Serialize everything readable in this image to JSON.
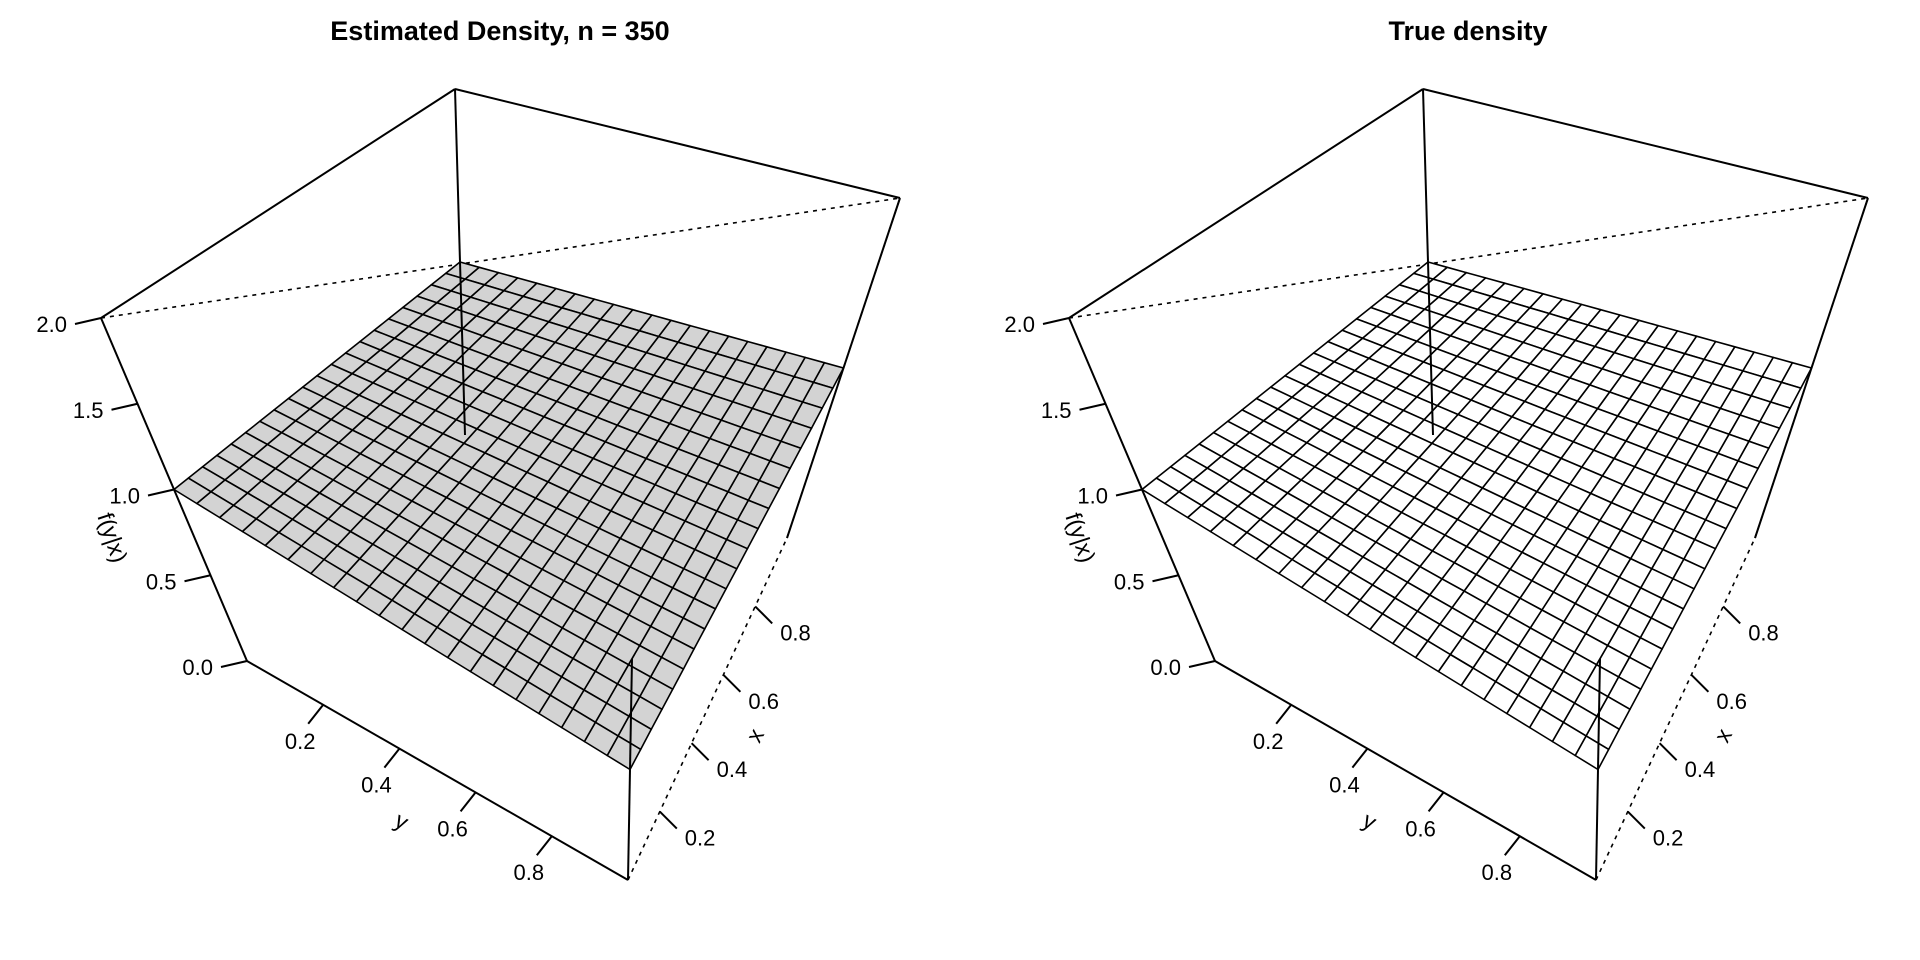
{
  "chart_data": [
    {
      "type": "surface",
      "title": "Estimated Density, n =  350",
      "xlabel": "x",
      "ylabel": "y",
      "zlabel": "f(y|x)",
      "x_ticks": [
        "0.2",
        "0.4",
        "0.6",
        "0.8"
      ],
      "y_ticks": [
        "0.2",
        "0.4",
        "0.6",
        "0.8"
      ],
      "z_ticks": [
        "0.0",
        "0.5",
        "1.0",
        "1.5",
        "2.0"
      ],
      "xlim": [
        0,
        1
      ],
      "ylim": [
        0,
        1
      ],
      "zlim": [
        0,
        2
      ],
      "grid_x": 20,
      "grid_y": 20,
      "surface_value": 1.0,
      "surface_color": "#d3d3d3"
    },
    {
      "type": "surface",
      "title": "True density",
      "xlabel": "x",
      "ylabel": "y",
      "zlabel": "f(y|x)",
      "x_ticks": [
        "0.2",
        "0.4",
        "0.6",
        "0.8"
      ],
      "y_ticks": [
        "0.2",
        "0.4",
        "0.6",
        "0.8"
      ],
      "z_ticks": [
        "0.0",
        "0.5",
        "1.0",
        "1.5",
        "2.0"
      ],
      "xlim": [
        0,
        1
      ],
      "ylim": [
        0,
        1
      ],
      "zlim": [
        0,
        2
      ],
      "grid_x": 20,
      "grid_y": 20,
      "surface_value": 1.0,
      "surface_color": "#ffffff"
    }
  ]
}
